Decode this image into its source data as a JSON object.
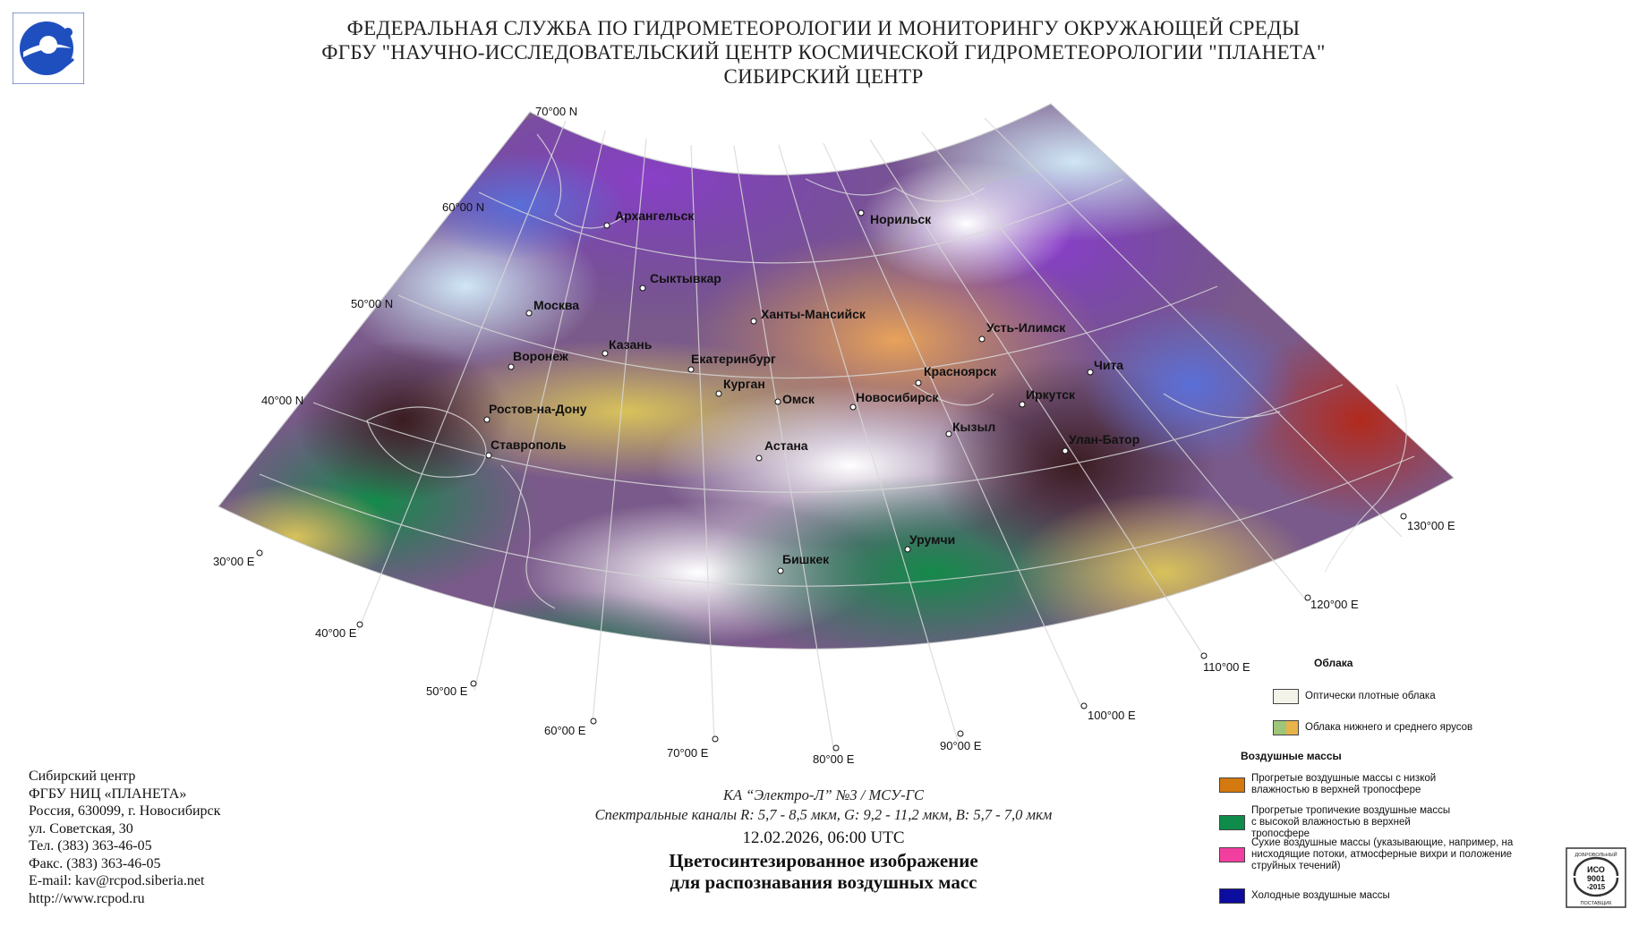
{
  "header": {
    "line1": "ФЕДЕРАЛЬНАЯ СЛУЖБА ПО ГИДРОМЕТЕОРОЛОГИИ И МОНИТОРИНГУ ОКРУЖАЮЩЕЙ СРЕДЫ",
    "line2": "ФГБУ \"НАУЧНО-ИССЛЕДОВАТЕЛЬСКИЙ ЦЕНТР КОСМИЧЕСКОЙ ГИДРОМЕТЕОРОЛОГИИ \"ПЛАНЕТА\"",
    "line3": "СИБИРСКИЙ ЦЕНТР"
  },
  "map": {
    "lat_labels": [
      "70°00 N",
      "60°00 N",
      "50°00 N",
      "40°00 N"
    ],
    "lon_labels": [
      "30°00 E",
      "40°00 E",
      "50°00 E",
      "60°00 E",
      "70°00 E",
      "80°00 E",
      "90°00 E",
      "100°00 E",
      "110°00 E",
      "120°00 E",
      "130°00 E"
    ],
    "cities": [
      "Архангельск",
      "Норильск",
      "Сыктывкар",
      "Москва",
      "Ханты-Мансийск",
      "Усть-Илимск",
      "Казань",
      "Воронеж",
      "Екатеринбург",
      "Красноярск",
      "Чита",
      "Курган",
      "Омск",
      "Новосибирск",
      "Иркутск",
      "Ростов-на-Дону",
      "Кызыл",
      "Улан-Батор",
      "Ставрополь",
      "Астана",
      "Урумчи",
      "Бишкек"
    ]
  },
  "address": {
    "line1": "Сибирский центр",
    "line2": "ФГБУ НИЦ «ПЛАНЕТА»",
    "line3": "Россия, 630099, г. Новосибирск",
    "line4": "ул. Советская, 30",
    "line5": "Тел. (383) 363-46-05",
    "line6": "Факс. (383) 363-46-05",
    "line7": "E-mail: kav@rcpod.siberia.net",
    "line8": "http://www.rcpod.ru"
  },
  "caption": {
    "satellite": "КА “Электро-Л” №3 / МСУ-ГС",
    "channels": "Спектральные каналы R: 5,7 - 8,5 мкм, G: 9,2 - 11,2 мкм, B: 5,7 - 7,0 мкм",
    "datetime": "12.02.2026, 06:00 UTC",
    "title1": "Цветосинтезированное изображение",
    "title2": "для распознавания воздушных масс"
  },
  "legend": {
    "clouds_heading": "Облака",
    "clouds": [
      {
        "label": "Оптически плотные облака",
        "color": "#f3f3e9"
      },
      {
        "label": "Облака нижнего и среднего ярусов",
        "color_a": "#9ec67a",
        "color_b": "#e7b34a"
      }
    ],
    "air_heading": "Воздушные массы",
    "air": [
      {
        "label": "Прогретые воздушные массы с низкой влажностью в верхней тропосфере",
        "color": "#d4790f"
      },
      {
        "label": "Прогретые тропичекие воздушные массы с высокой влажностью в верхней тропосфере",
        "color": "#0f8c4a"
      },
      {
        "label": "Сухие воздушные массы (указывающие, например, на нисходящие потоки, атмосферные вихри и положение струйных течений)",
        "color": "#f23f9f"
      },
      {
        "label": "Холодные воздушные массы",
        "color": "#0c0c9e"
      }
    ]
  },
  "iso": {
    "top": "ДОБРОВОЛЬНЫЙ",
    "line1": "ИСО",
    "line2": "9001",
    "line3": "-2015",
    "bottom": "ПОСТАВЩИК"
  },
  "colors": {
    "grid": "#d8d8d8",
    "coast": "#e0e0e0"
  }
}
